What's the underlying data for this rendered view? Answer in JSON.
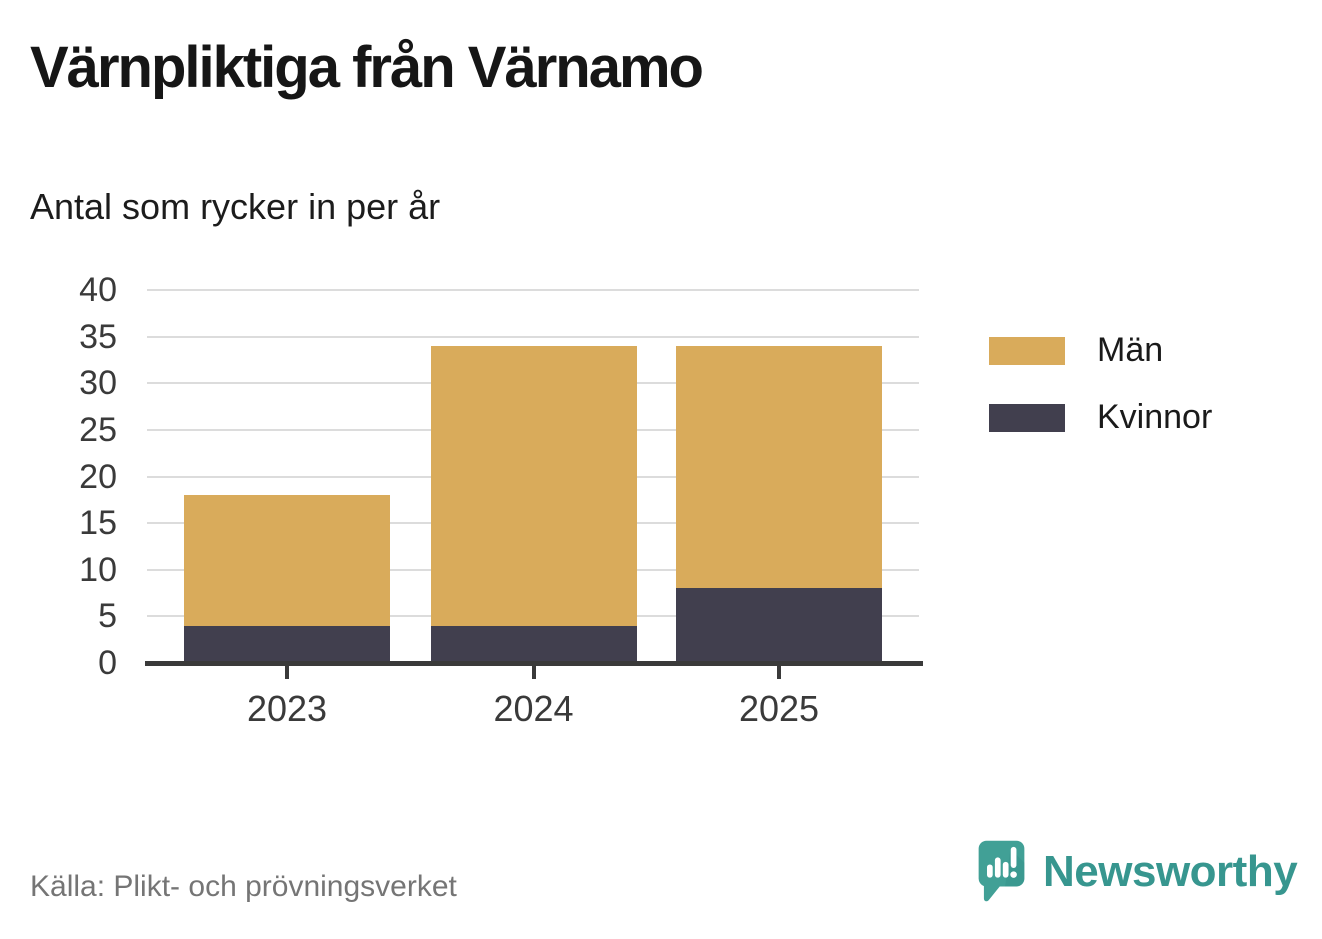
{
  "title": "Värnpliktiga från Värnamo",
  "subtitle": "Antal som rycker in per år",
  "source": "Källa: Plikt- och prövningsverket",
  "branding": {
    "name": "Newsworthy",
    "icon": "newsworthy-speech-bubble-chart-icon",
    "teal": "#41a096",
    "teal_dark": "#35908a",
    "text_color": "#37968f"
  },
  "colors": {
    "grid": "#dcdcdc",
    "axis": "#3a3a3a",
    "tick_label": "#3a3a3a",
    "title_text": "#161616",
    "source_text": "#757575",
    "background": "#ffffff"
  },
  "chart_data": {
    "type": "bar",
    "stacked": true,
    "title": "Värnpliktiga från Värnamo",
    "subtitle": "Antal som rycker in per år",
    "categories": [
      "2023",
      "2024",
      "2025"
    ],
    "series": [
      {
        "name": "Män",
        "color": "#d9ab5b",
        "values": [
          14,
          30,
          26
        ]
      },
      {
        "name": "Kvinnor",
        "color": "#413f4e",
        "values": [
          4,
          4,
          8
        ]
      }
    ],
    "totals": [
      18,
      34,
      34
    ],
    "xlabel": "",
    "ylabel": "",
    "ylim": [
      0,
      40
    ],
    "yticks": [
      0,
      5,
      10,
      15,
      20,
      25,
      30,
      35,
      40
    ],
    "grid": "horizontal",
    "legend_position": "right",
    "source": "Källa: Plikt- och prövningsverket"
  }
}
